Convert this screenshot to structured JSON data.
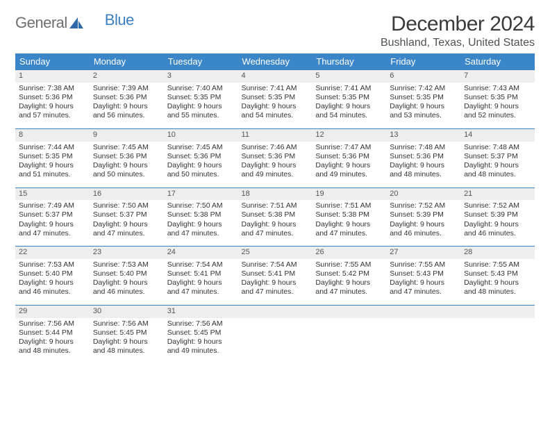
{
  "logo": {
    "text1": "General",
    "text2": "Blue"
  },
  "title": "December 2024",
  "location": "Bushland, Texas, United States",
  "theme": {
    "header_bg": "#3a86c8",
    "header_fg": "#ffffff",
    "rule_color": "#3a7fbf",
    "daynum_bg": "#eeeeee",
    "page_bg": "#ffffff",
    "logo_gray": "#6f6f6f",
    "logo_blue": "#3a7fbf"
  },
  "weekdays": [
    "Sunday",
    "Monday",
    "Tuesday",
    "Wednesday",
    "Thursday",
    "Friday",
    "Saturday"
  ],
  "weeks": [
    [
      {
        "n": "1",
        "sr": "Sunrise: 7:38 AM",
        "ss": "Sunset: 5:36 PM",
        "d1": "Daylight: 9 hours",
        "d2": "and 57 minutes."
      },
      {
        "n": "2",
        "sr": "Sunrise: 7:39 AM",
        "ss": "Sunset: 5:36 PM",
        "d1": "Daylight: 9 hours",
        "d2": "and 56 minutes."
      },
      {
        "n": "3",
        "sr": "Sunrise: 7:40 AM",
        "ss": "Sunset: 5:35 PM",
        "d1": "Daylight: 9 hours",
        "d2": "and 55 minutes."
      },
      {
        "n": "4",
        "sr": "Sunrise: 7:41 AM",
        "ss": "Sunset: 5:35 PM",
        "d1": "Daylight: 9 hours",
        "d2": "and 54 minutes."
      },
      {
        "n": "5",
        "sr": "Sunrise: 7:41 AM",
        "ss": "Sunset: 5:35 PM",
        "d1": "Daylight: 9 hours",
        "d2": "and 54 minutes."
      },
      {
        "n": "6",
        "sr": "Sunrise: 7:42 AM",
        "ss": "Sunset: 5:35 PM",
        "d1": "Daylight: 9 hours",
        "d2": "and 53 minutes."
      },
      {
        "n": "7",
        "sr": "Sunrise: 7:43 AM",
        "ss": "Sunset: 5:35 PM",
        "d1": "Daylight: 9 hours",
        "d2": "and 52 minutes."
      }
    ],
    [
      {
        "n": "8",
        "sr": "Sunrise: 7:44 AM",
        "ss": "Sunset: 5:35 PM",
        "d1": "Daylight: 9 hours",
        "d2": "and 51 minutes."
      },
      {
        "n": "9",
        "sr": "Sunrise: 7:45 AM",
        "ss": "Sunset: 5:36 PM",
        "d1": "Daylight: 9 hours",
        "d2": "and 50 minutes."
      },
      {
        "n": "10",
        "sr": "Sunrise: 7:45 AM",
        "ss": "Sunset: 5:36 PM",
        "d1": "Daylight: 9 hours",
        "d2": "and 50 minutes."
      },
      {
        "n": "11",
        "sr": "Sunrise: 7:46 AM",
        "ss": "Sunset: 5:36 PM",
        "d1": "Daylight: 9 hours",
        "d2": "and 49 minutes."
      },
      {
        "n": "12",
        "sr": "Sunrise: 7:47 AM",
        "ss": "Sunset: 5:36 PM",
        "d1": "Daylight: 9 hours",
        "d2": "and 49 minutes."
      },
      {
        "n": "13",
        "sr": "Sunrise: 7:48 AM",
        "ss": "Sunset: 5:36 PM",
        "d1": "Daylight: 9 hours",
        "d2": "and 48 minutes."
      },
      {
        "n": "14",
        "sr": "Sunrise: 7:48 AM",
        "ss": "Sunset: 5:37 PM",
        "d1": "Daylight: 9 hours",
        "d2": "and 48 minutes."
      }
    ],
    [
      {
        "n": "15",
        "sr": "Sunrise: 7:49 AM",
        "ss": "Sunset: 5:37 PM",
        "d1": "Daylight: 9 hours",
        "d2": "and 47 minutes."
      },
      {
        "n": "16",
        "sr": "Sunrise: 7:50 AM",
        "ss": "Sunset: 5:37 PM",
        "d1": "Daylight: 9 hours",
        "d2": "and 47 minutes."
      },
      {
        "n": "17",
        "sr": "Sunrise: 7:50 AM",
        "ss": "Sunset: 5:38 PM",
        "d1": "Daylight: 9 hours",
        "d2": "and 47 minutes."
      },
      {
        "n": "18",
        "sr": "Sunrise: 7:51 AM",
        "ss": "Sunset: 5:38 PM",
        "d1": "Daylight: 9 hours",
        "d2": "and 47 minutes."
      },
      {
        "n": "19",
        "sr": "Sunrise: 7:51 AM",
        "ss": "Sunset: 5:38 PM",
        "d1": "Daylight: 9 hours",
        "d2": "and 47 minutes."
      },
      {
        "n": "20",
        "sr": "Sunrise: 7:52 AM",
        "ss": "Sunset: 5:39 PM",
        "d1": "Daylight: 9 hours",
        "d2": "and 46 minutes."
      },
      {
        "n": "21",
        "sr": "Sunrise: 7:52 AM",
        "ss": "Sunset: 5:39 PM",
        "d1": "Daylight: 9 hours",
        "d2": "and 46 minutes."
      }
    ],
    [
      {
        "n": "22",
        "sr": "Sunrise: 7:53 AM",
        "ss": "Sunset: 5:40 PM",
        "d1": "Daylight: 9 hours",
        "d2": "and 46 minutes."
      },
      {
        "n": "23",
        "sr": "Sunrise: 7:53 AM",
        "ss": "Sunset: 5:40 PM",
        "d1": "Daylight: 9 hours",
        "d2": "and 46 minutes."
      },
      {
        "n": "24",
        "sr": "Sunrise: 7:54 AM",
        "ss": "Sunset: 5:41 PM",
        "d1": "Daylight: 9 hours",
        "d2": "and 47 minutes."
      },
      {
        "n": "25",
        "sr": "Sunrise: 7:54 AM",
        "ss": "Sunset: 5:41 PM",
        "d1": "Daylight: 9 hours",
        "d2": "and 47 minutes."
      },
      {
        "n": "26",
        "sr": "Sunrise: 7:55 AM",
        "ss": "Sunset: 5:42 PM",
        "d1": "Daylight: 9 hours",
        "d2": "and 47 minutes."
      },
      {
        "n": "27",
        "sr": "Sunrise: 7:55 AM",
        "ss": "Sunset: 5:43 PM",
        "d1": "Daylight: 9 hours",
        "d2": "and 47 minutes."
      },
      {
        "n": "28",
        "sr": "Sunrise: 7:55 AM",
        "ss": "Sunset: 5:43 PM",
        "d1": "Daylight: 9 hours",
        "d2": "and 48 minutes."
      }
    ],
    [
      {
        "n": "29",
        "sr": "Sunrise: 7:56 AM",
        "ss": "Sunset: 5:44 PM",
        "d1": "Daylight: 9 hours",
        "d2": "and 48 minutes."
      },
      {
        "n": "30",
        "sr": "Sunrise: 7:56 AM",
        "ss": "Sunset: 5:45 PM",
        "d1": "Daylight: 9 hours",
        "d2": "and 48 minutes."
      },
      {
        "n": "31",
        "sr": "Sunrise: 7:56 AM",
        "ss": "Sunset: 5:45 PM",
        "d1": "Daylight: 9 hours",
        "d2": "and 49 minutes."
      },
      null,
      null,
      null,
      null
    ]
  ]
}
